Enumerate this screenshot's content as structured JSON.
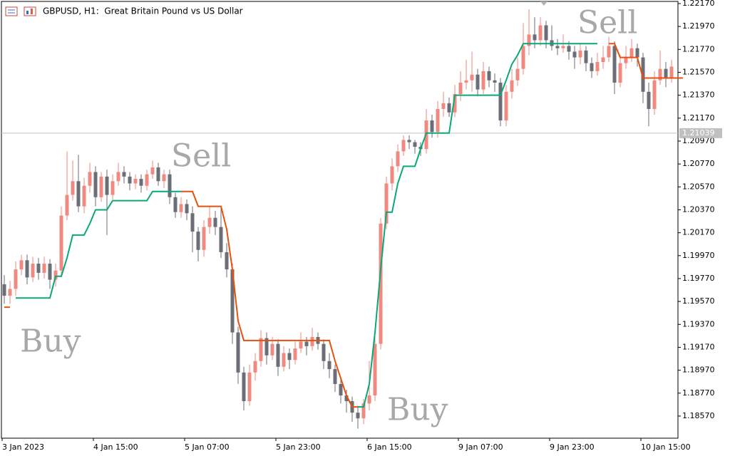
{
  "chart_data": {
    "type": "candlestick",
    "title": "GBPUSD, H1:  Great Britain Pound vs US Dollar",
    "bull_color": "#f08a80",
    "bear_color": "#6b6e76",
    "up_color": "#0aa878",
    "down_color": "#e8500e",
    "annotations": [
      "Sell",
      "Sell",
      "Buy",
      "Buy"
    ],
    "current_price": {
      "value": 1.21039,
      "label": "1.21039"
    },
    "ylim": [
      1.18377,
      1.22201
    ],
    "yticks": [
      {
        "value": 1.2217,
        "label": "1.22170"
      },
      {
        "value": 1.2197,
        "label": "1.21970"
      },
      {
        "value": 1.2177,
        "label": "1.21770"
      },
      {
        "value": 1.2157,
        "label": "1.21570"
      },
      {
        "value": 1.2137,
        "label": "1.21370"
      },
      {
        "value": 1.2117,
        "label": "1.21170"
      },
      {
        "value": 1.2097,
        "label": "1.20970"
      },
      {
        "value": 1.2077,
        "label": "1.20770"
      },
      {
        "value": 1.2057,
        "label": "1.20570"
      },
      {
        "value": 1.2037,
        "label": "1.20370"
      },
      {
        "value": 1.2017,
        "label": "1.20170"
      },
      {
        "value": 1.1997,
        "label": "1.19970"
      },
      {
        "value": 1.1977,
        "label": "1.19770"
      },
      {
        "value": 1.1957,
        "label": "1.19570"
      },
      {
        "value": 1.1937,
        "label": "1.19370"
      },
      {
        "value": 1.1917,
        "label": "1.19170"
      },
      {
        "value": 1.1897,
        "label": "1.18970"
      },
      {
        "value": 1.1877,
        "label": "1.18770"
      },
      {
        "value": 1.1857,
        "label": "1.18570"
      }
    ],
    "categories": [
      "3 Jan 2023",
      null,
      null,
      null,
      null,
      null,
      null,
      null,
      null,
      null,
      null,
      null,
      null,
      null,
      null,
      null,
      "4 Jan 15:00",
      null,
      null,
      null,
      null,
      null,
      null,
      null,
      null,
      null,
      null,
      null,
      null,
      null,
      null,
      null,
      "5 Jan 07:00",
      null,
      null,
      null,
      null,
      null,
      null,
      null,
      null,
      null,
      null,
      null,
      null,
      null,
      null,
      null,
      "5 Jan 23:00",
      null,
      null,
      null,
      null,
      null,
      null,
      null,
      null,
      null,
      null,
      null,
      null,
      null,
      null,
      null,
      "6 Jan 15:00",
      null,
      null,
      null,
      null,
      null,
      null,
      null,
      null,
      null,
      null,
      null,
      null,
      null,
      null,
      null,
      "9 Jan 07:00",
      null,
      null,
      null,
      null,
      null,
      null,
      null,
      null,
      null,
      null,
      null,
      null,
      null,
      null,
      null,
      "9 Jan 23:00",
      null,
      null,
      null,
      null,
      null,
      null,
      null,
      null,
      null,
      null,
      null,
      null,
      null,
      null,
      null,
      "10 Jan 15:00",
      null,
      null,
      null,
      null,
      null
    ],
    "open": [
      1.1972,
      1.1962,
      1.1968,
      1.1985,
      1.1993,
      1.1978,
      1.199,
      1.1982,
      1.199,
      1.1976,
      1.1984,
      1.2032,
      1.205,
      1.2062,
      1.204,
      1.2058,
      1.207,
      1.2048,
      1.2066,
      1.205,
      1.2062,
      1.207,
      1.2066,
      1.206,
      1.2064,
      1.2058,
      1.2068,
      1.2074,
      1.2062,
      1.2068,
      1.2048,
      1.2035,
      1.2042,
      1.2034,
      1.2018,
      1.2002,
      1.2022,
      1.203,
      1.2022,
      1.2,
      1.1985,
      1.193,
      1.1895,
      1.187,
      1.1895,
      1.1905,
      1.1925,
      1.191,
      1.192,
      1.19,
      1.1912,
      1.1906,
      1.1916,
      1.1922,
      1.1918,
      1.1926,
      1.192,
      1.1905,
      1.1898,
      1.1885,
      1.1875,
      1.187,
      1.186,
      1.1855,
      1.1868,
      1.1875,
      1.192,
      1.2025,
      1.206,
      1.2075,
      1.2088,
      1.2098,
      1.2096,
      1.2092,
      1.209,
      1.2115,
      1.2105,
      1.2125,
      1.213,
      1.2122,
      1.2138,
      1.2148,
      1.215,
      1.2155,
      1.2142,
      1.2158,
      1.215,
      1.2148,
      1.2115,
      1.214,
      1.215,
      1.216,
      1.218,
      1.219,
      1.2185,
      1.2198,
      1.2185,
      1.218,
      1.2178,
      1.218,
      1.2175,
      1.217,
      1.2176,
      1.2165,
      1.2158,
      1.2166,
      1.217,
      1.218,
      1.2148,
      1.2165,
      1.217,
      1.2178,
      1.217,
      1.214,
      1.2125,
      1.215,
      1.216,
      1.2152
    ],
    "high": [
      1.198,
      1.1975,
      1.1992,
      1.1998,
      1.1998,
      1.1996,
      1.1995,
      1.1996,
      1.1994,
      1.199,
      1.204,
      1.2088,
      1.208,
      1.2085,
      1.2065,
      1.2078,
      1.2075,
      1.207,
      1.2072,
      1.2068,
      1.2078,
      1.2075,
      1.207,
      1.2068,
      1.2068,
      1.2072,
      1.208,
      1.2078,
      1.2072,
      1.2072,
      1.2052,
      1.2048,
      1.2046,
      1.204,
      1.2022,
      1.2028,
      1.204,
      1.2036,
      1.204,
      1.2008,
      1.199,
      1.1935,
      1.19,
      1.1902,
      1.1912,
      1.1932,
      1.193,
      1.1926,
      1.1924,
      1.1918,
      1.1916,
      1.1922,
      1.193,
      1.1926,
      1.1934,
      1.193,
      1.1924,
      1.1912,
      1.1902,
      1.189,
      1.188,
      1.1874,
      1.1866,
      1.1872,
      1.1905,
      1.1928,
      1.203,
      1.2066,
      1.2082,
      1.2094,
      1.2102,
      1.2102,
      1.2098,
      1.2096,
      1.2125,
      1.212,
      1.2132,
      1.214,
      1.2135,
      1.2146,
      1.2158,
      1.2168,
      1.2175,
      1.216,
      1.2166,
      1.2162,
      1.2156,
      1.2152,
      1.2146,
      1.216,
      1.217,
      1.22,
      1.2212,
      1.2205,
      1.2205,
      1.2202,
      1.2198,
      1.2186,
      1.219,
      1.2184,
      1.218,
      1.2182,
      1.218,
      1.217,
      1.2174,
      1.218,
      1.2188,
      1.2184,
      1.2172,
      1.218,
      1.2186,
      1.2182,
      1.2174,
      1.2148,
      1.2158,
      1.2176,
      1.2166,
      1.2168
    ],
    "low": [
      1.1955,
      1.1955,
      1.1962,
      1.198,
      1.1972,
      1.1974,
      1.1976,
      1.1977,
      1.1968,
      1.197,
      1.198,
      1.2028,
      1.2045,
      1.2035,
      1.2034,
      1.2052,
      1.204,
      1.2044,
      1.2015,
      1.2046,
      1.2058,
      1.206,
      1.2054,
      1.2055,
      1.2052,
      1.2054,
      1.2064,
      1.2058,
      1.2056,
      1.2042,
      1.203,
      1.203,
      1.2028,
      1.2,
      1.1992,
      1.1996,
      1.2016,
      1.2015,
      1.1995,
      1.1978,
      1.192,
      1.1885,
      1.1862,
      1.1866,
      1.1888,
      1.19,
      1.1902,
      1.1906,
      1.1892,
      1.1896,
      1.1898,
      1.1902,
      1.1912,
      1.191,
      1.1914,
      1.1915,
      1.1898,
      1.189,
      1.1878,
      1.1868,
      1.186,
      1.1852,
      1.1846,
      1.185,
      1.1862,
      1.187,
      1.1915,
      1.202,
      1.2054,
      1.207,
      1.2084,
      1.209,
      1.2086,
      1.2084,
      1.2086,
      1.21,
      1.21,
      1.2118,
      1.2118,
      1.2118,
      1.2132,
      1.2142,
      1.214,
      1.2136,
      1.2138,
      1.2144,
      1.214,
      1.211,
      1.211,
      1.2134,
      1.2145,
      1.2155,
      1.2172,
      1.2178,
      1.218,
      1.2178,
      1.2176,
      1.2172,
      1.2174,
      1.2168,
      1.216,
      1.2164,
      1.2158,
      1.2152,
      1.2154,
      1.216,
      1.2166,
      1.2138,
      1.2144,
      1.216,
      1.2166,
      1.2162,
      1.213,
      1.211,
      1.212,
      1.2146,
      1.2144,
      1.2148
    ],
    "close": [
      1.1962,
      1.1968,
      1.1985,
      1.1993,
      1.1978,
      1.199,
      1.1982,
      1.199,
      1.1976,
      1.1984,
      1.2032,
      1.205,
      1.2062,
      1.204,
      1.2058,
      1.207,
      1.2048,
      1.2066,
      1.205,
      1.2062,
      1.207,
      1.2066,
      1.206,
      1.2064,
      1.2058,
      1.2068,
      1.2074,
      1.2062,
      1.2068,
      1.2048,
      1.2035,
      1.2042,
      1.2034,
      1.2018,
      1.2002,
      1.2022,
      1.203,
      1.2022,
      1.2,
      1.1985,
      1.193,
      1.1895,
      1.187,
      1.1895,
      1.1905,
      1.1925,
      1.191,
      1.192,
      1.19,
      1.1912,
      1.1906,
      1.1916,
      1.1922,
      1.1918,
      1.1926,
      1.192,
      1.1905,
      1.1898,
      1.1885,
      1.1875,
      1.187,
      1.186,
      1.1855,
      1.1868,
      1.1875,
      1.192,
      1.2025,
      1.206,
      1.2075,
      1.2088,
      1.2098,
      1.2096,
      1.2092,
      1.209,
      1.2115,
      1.2105,
      1.2125,
      1.213,
      1.2122,
      1.2138,
      1.2148,
      1.215,
      1.2155,
      1.2142,
      1.2158,
      1.215,
      1.2148,
      1.2115,
      1.214,
      1.215,
      1.216,
      1.218,
      1.219,
      1.2185,
      1.2198,
      1.2185,
      1.218,
      1.2178,
      1.218,
      1.2175,
      1.217,
      1.2176,
      1.2165,
      1.2158,
      1.2166,
      1.217,
      1.218,
      1.2148,
      1.2165,
      1.217,
      1.2178,
      1.217,
      1.214,
      1.2125,
      1.215,
      1.216,
      1.2152,
      1.2162
    ],
    "up": [
      null,
      null,
      1.196,
      1.196,
      1.196,
      1.196,
      1.196,
      1.196,
      1.196,
      1.1979,
      1.1979,
      1.1995,
      1.2015,
      1.2015,
      1.2015,
      1.2025,
      1.2037,
      1.2037,
      1.2037,
      1.2045,
      1.2045,
      1.2045,
      1.2045,
      1.2045,
      1.2045,
      1.2045,
      1.2053,
      1.2053,
      1.2053,
      1.2053,
      1.2053,
      1.2053,
      null,
      null,
      null,
      null,
      null,
      null,
      null,
      null,
      null,
      null,
      null,
      null,
      null,
      null,
      null,
      null,
      null,
      null,
      null,
      null,
      null,
      null,
      null,
      null,
      null,
      null,
      null,
      null,
      null,
      null,
      1.1865,
      1.1865,
      1.1885,
      1.193,
      1.1985,
      1.2035,
      1.2035,
      1.206,
      1.2075,
      1.2075,
      1.2075,
      1.209,
      1.2104,
      1.2104,
      1.2104,
      1.2104,
      1.2104,
      1.2137,
      1.2137,
      1.2137,
      1.2137,
      1.2137,
      1.2137,
      1.2137,
      1.2137,
      1.2137,
      1.215,
      1.2164,
      1.2172,
      1.2182,
      1.2182,
      1.2182,
      1.2182,
      1.2182,
      1.2182,
      1.2182,
      1.2182,
      1.2182,
      1.2182,
      1.2182,
      1.2182,
      1.2182,
      1.2182,
      null,
      null,
      null,
      null,
      null,
      null,
      null,
      null,
      null,
      null,
      null,
      null,
      null
    ],
    "down": [
      1.1952,
      1.1952,
      null,
      null,
      null,
      null,
      null,
      null,
      null,
      null,
      null,
      null,
      null,
      null,
      null,
      null,
      null,
      null,
      null,
      null,
      null,
      null,
      null,
      null,
      null,
      null,
      null,
      null,
      null,
      null,
      null,
      1.2053,
      1.2053,
      1.2053,
      1.204,
      1.204,
      1.204,
      1.204,
      1.204,
      1.202,
      1.1985,
      1.194,
      1.1923,
      1.1923,
      1.1923,
      1.1923,
      1.1923,
      1.1923,
      1.1923,
      1.1923,
      1.1923,
      1.1923,
      1.1923,
      1.1923,
      1.1923,
      1.1923,
      1.1923,
      1.1923,
      1.1905,
      1.189,
      1.1875,
      1.1865,
      1.1865,
      null,
      null,
      null,
      null,
      null,
      null,
      null,
      null,
      null,
      null,
      null,
      null,
      null,
      null,
      null,
      null,
      null,
      null,
      null,
      null,
      null,
      null,
      null,
      null,
      null,
      null,
      null,
      null,
      null,
      null,
      null,
      null,
      null,
      null,
      null,
      null,
      null,
      null,
      null,
      null,
      null,
      null,
      null,
      1.2182,
      1.2182,
      1.217,
      1.217,
      1.217,
      1.217,
      1.2152,
      1.2152,
      1.2152,
      1.2152,
      1.2152,
      1.2152,
      1.2152,
      1.2152
    ]
  }
}
